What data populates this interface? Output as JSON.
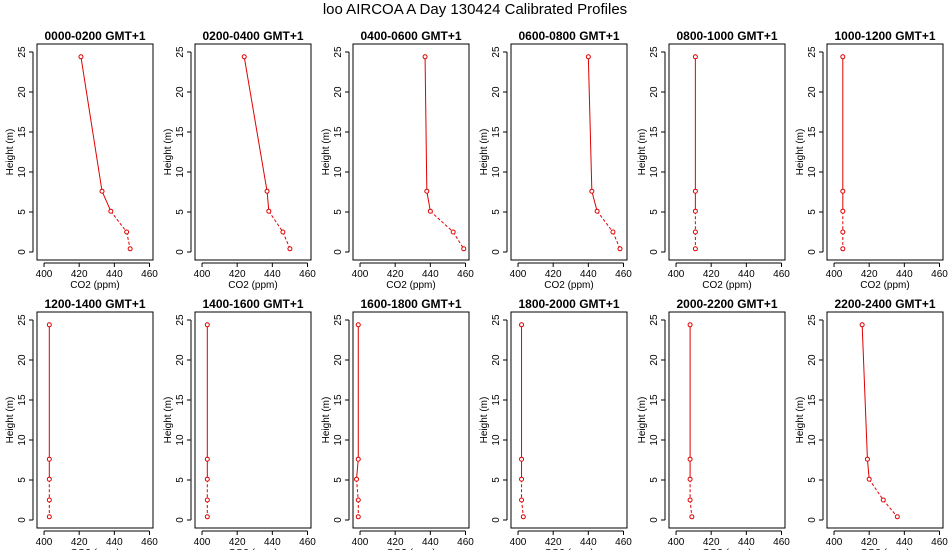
{
  "figure_title": "loo AIRCOA A  Day 130424  Calibrated Profiles",
  "line_color": "#e00000",
  "chart_data": {
    "type": "line",
    "xlabel": "CO2 (ppm)",
    "ylabel": "Height (m)",
    "xlim": [
      396,
      462
    ],
    "ylim": [
      -1,
      26
    ],
    "x_ticks": [
      400,
      420,
      440,
      460
    ],
    "y_ticks": [
      0,
      5,
      10,
      15,
      20,
      25
    ],
    "grid": false,
    "panels": [
      {
        "title": "0000-0200 GMT+1",
        "heights": [
          24.4,
          7.6,
          5.1,
          2.5,
          0.4
        ],
        "co2": [
          421,
          433,
          438,
          447,
          449
        ]
      },
      {
        "title": "0200-0400 GMT+1",
        "heights": [
          24.4,
          7.6,
          5.1,
          2.5,
          0.4
        ],
        "co2": [
          424,
          437,
          438,
          446,
          450
        ]
      },
      {
        "title": "0400-0600 GMT+1",
        "heights": [
          24.4,
          7.6,
          5.1,
          2.5,
          0.4
        ],
        "co2": [
          437,
          438,
          440,
          453,
          459
        ]
      },
      {
        "title": "0600-0800 GMT+1",
        "heights": [
          24.4,
          7.6,
          5.1,
          2.5,
          0.4
        ],
        "co2": [
          440,
          442,
          445,
          454,
          458
        ]
      },
      {
        "title": "0800-1000 GMT+1",
        "heights": [
          24.4,
          7.6,
          5.1,
          2.5,
          0.4
        ],
        "co2": [
          411,
          411,
          411,
          411,
          411
        ]
      },
      {
        "title": "1000-1200 GMT+1",
        "heights": [
          24.4,
          7.6,
          5.1,
          2.5,
          0.4
        ],
        "co2": [
          405,
          405,
          405,
          405,
          405
        ]
      },
      {
        "title": "1200-1400 GMT+1",
        "heights": [
          24.4,
          7.6,
          5.1,
          2.5,
          0.4
        ],
        "co2": [
          403,
          403,
          403,
          403,
          403
        ]
      },
      {
        "title": "1400-1600 GMT+1",
        "heights": [
          24.4,
          7.6,
          5.1,
          2.5,
          0.4
        ],
        "co2": [
          403,
          403,
          403,
          403,
          403
        ]
      },
      {
        "title": "1600-1800 GMT+1",
        "heights": [
          24.4,
          7.6,
          5.1,
          2.5,
          0.4
        ],
        "co2": [
          399,
          399,
          398,
          399,
          399
        ]
      },
      {
        "title": "1800-2000 GMT+1",
        "heights": [
          24.4,
          7.6,
          5.1,
          2.5,
          0.4
        ],
        "co2": [
          402,
          402,
          402,
          402,
          403
        ]
      },
      {
        "title": "2000-2200 GMT+1",
        "heights": [
          24.4,
          7.6,
          5.1,
          2.5,
          0.4
        ],
        "co2": [
          408,
          408,
          408,
          408,
          409
        ]
      },
      {
        "title": "2200-2400 GMT+1",
        "heights": [
          24.4,
          7.6,
          5.1,
          2.5,
          0.4
        ],
        "co2": [
          416,
          419,
          420,
          428,
          436
        ]
      }
    ]
  }
}
